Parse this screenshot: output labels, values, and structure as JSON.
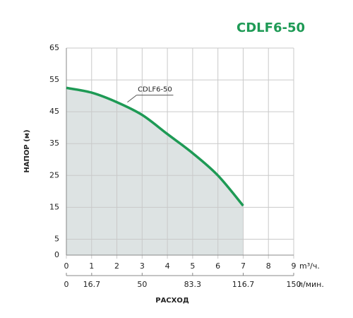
{
  "chart_data": {
    "type": "area-line",
    "title": "CDLF6-50",
    "x": [
      0,
      1,
      2,
      3,
      4,
      5,
      6,
      7
    ],
    "series": [
      {
        "name": "CDLF6-50",
        "color": "#1e9a55",
        "fill": "#dde3e3",
        "values": [
          52.5,
          51,
          48,
          44,
          38,
          32,
          25,
          15.5
        ]
      }
    ],
    "xlim": [
      0,
      9
    ],
    "xticks": [
      0,
      1,
      2,
      3,
      4,
      5,
      6,
      7,
      8,
      9
    ],
    "x_unit": "m³/ч.",
    "x2lim": [
      0,
      150
    ],
    "x2ticks": [
      0,
      16.7,
      50,
      83.3,
      116.7,
      150
    ],
    "x2_unit": "л/мин.",
    "ylim": [
      0,
      65
    ],
    "yticks": [
      0,
      5,
      15,
      25,
      35,
      45,
      55,
      65
    ],
    "y_label": "НАПОР (м)",
    "x_label": "РАСХОД",
    "grid": true
  }
}
